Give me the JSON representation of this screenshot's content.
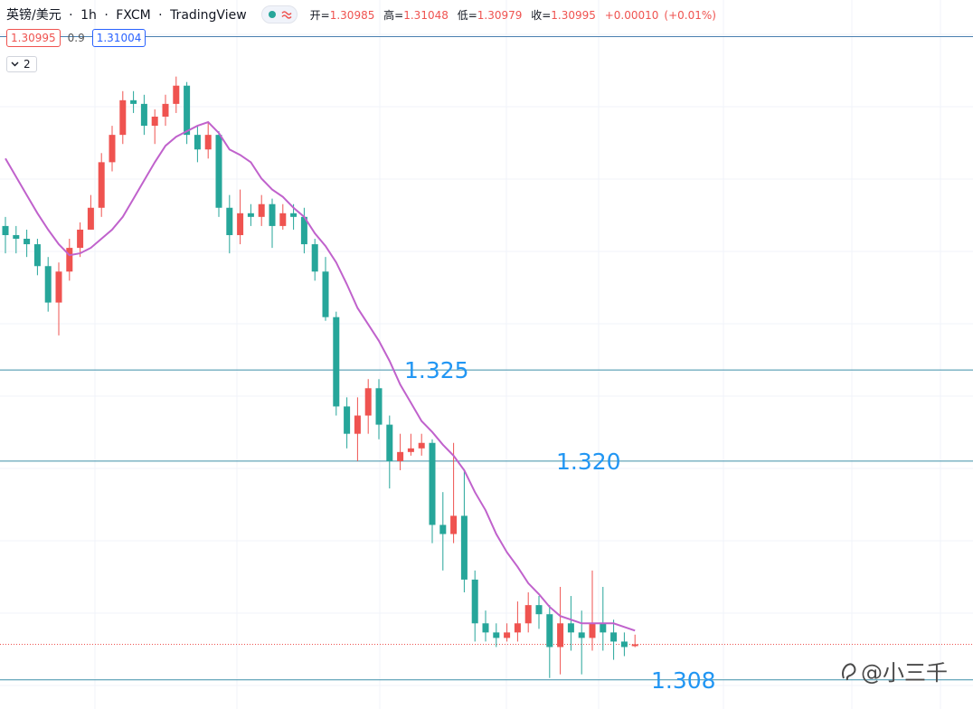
{
  "header": {
    "symbol": "英镑/美元",
    "separator": "·",
    "interval": "1h",
    "broker": "FXCM",
    "platform": "TradingView",
    "open_label": "开=",
    "high_label": "高=",
    "low_label": "低=",
    "close_label": "收=",
    "change": "+0.00010",
    "change_pct": "(+0.01%)",
    "spread": 0.9,
    "ask": 1.31004,
    "indicator_count": 2
  },
  "watermark": "@小三千",
  "chart_data": {
    "type": "candlestick",
    "open": [
      1.3329,
      1.3324,
      1.3322,
      1.3319,
      1.3307,
      1.3287,
      1.3304,
      1.3317,
      1.3327,
      1.3339,
      1.3364,
      1.3379,
      1.3398,
      1.3396,
      1.3384,
      1.3389,
      1.3396,
      1.3406,
      1.3379,
      1.3371,
      1.3379,
      1.3339,
      1.3324,
      1.3336,
      1.3334,
      1.3341,
      1.3329,
      1.3336,
      1.3334,
      1.3319,
      1.3304,
      1.3279,
      1.323,
      1.3215,
      1.3225,
      1.324,
      1.322,
      1.32,
      1.3205,
      1.3207,
      1.321,
      1.3165,
      1.316,
      1.317,
      1.3135,
      1.3111,
      1.3106,
      1.3103,
      1.3106,
      1.3111,
      1.3121,
      1.3116,
      1.3098,
      1.3111,
      1.3106,
      1.3103,
      1.3111,
      1.3106,
      1.3101,
      1.30985
    ],
    "high": [
      1.3334,
      1.3329,
      1.3327,
      1.3322,
      1.3312,
      1.3309,
      1.3322,
      1.3331,
      1.3346,
      1.3369,
      1.3384,
      1.3403,
      1.3403,
      1.3401,
      1.3393,
      1.3401,
      1.3411,
      1.3408,
      1.3384,
      1.3386,
      1.3381,
      1.3346,
      1.3349,
      1.3341,
      1.3346,
      1.3344,
      1.3341,
      1.3341,
      1.3339,
      1.3322,
      1.3312,
      1.3282,
      1.3235,
      1.3235,
      1.3245,
      1.3245,
      1.3225,
      1.3215,
      1.3215,
      1.3215,
      1.3212,
      1.3183,
      1.321,
      1.3195,
      1.314,
      1.3118,
      1.3111,
      1.3111,
      1.3123,
      1.3128,
      1.3126,
      1.3121,
      1.3131,
      1.3126,
      1.3118,
      1.314,
      1.3131,
      1.3113,
      1.3106,
      1.31048
    ],
    "low": [
      1.3314,
      1.3314,
      1.3312,
      1.3302,
      1.3282,
      1.3269,
      1.3299,
      1.3312,
      1.3327,
      1.3334,
      1.3359,
      1.3374,
      1.3391,
      1.3379,
      1.3374,
      1.3384,
      1.3391,
      1.3374,
      1.3364,
      1.3366,
      1.3334,
      1.3314,
      1.3319,
      1.3329,
      1.3329,
      1.3317,
      1.3327,
      1.3327,
      1.3314,
      1.3299,
      1.3277,
      1.3225,
      1.3207,
      1.32,
      1.3215,
      1.3212,
      1.3185,
      1.3195,
      1.3203,
      1.3203,
      1.3155,
      1.314,
      1.3155,
      1.3128,
      1.3101,
      1.3101,
      1.3098,
      1.3101,
      1.3101,
      1.3106,
      1.3108,
      1.3081,
      1.3083,
      1.3096,
      1.3083,
      1.3096,
      1.3096,
      1.3091,
      1.3093,
      1.30979
    ],
    "close": [
      1.3324,
      1.3322,
      1.3319,
      1.3307,
      1.3287,
      1.3304,
      1.3317,
      1.3327,
      1.3339,
      1.3364,
      1.3379,
      1.3398,
      1.3396,
      1.3384,
      1.3389,
      1.3396,
      1.3406,
      1.3379,
      1.3371,
      1.3379,
      1.3339,
      1.3324,
      1.3336,
      1.3334,
      1.3341,
      1.3329,
      1.3336,
      1.3334,
      1.3319,
      1.3304,
      1.3279,
      1.323,
      1.3215,
      1.3225,
      1.324,
      1.322,
      1.32,
      1.3205,
      1.3207,
      1.321,
      1.3165,
      1.316,
      1.317,
      1.3135,
      1.3111,
      1.3106,
      1.3103,
      1.3106,
      1.3111,
      1.3121,
      1.3116,
      1.3098,
      1.3111,
      1.3106,
      1.3103,
      1.3111,
      1.3106,
      1.3101,
      1.3098,
      1.30995
    ],
    "up_color": "#ef5350",
    "down_color": "#26a69a",
    "ma": {
      "color": "#c062cc",
      "values": [
        1.3366,
        1.3356,
        1.3346,
        1.3336,
        1.3327,
        1.3319,
        1.3313,
        1.3314,
        1.3317,
        1.3322,
        1.3327,
        1.3334,
        1.3344,
        1.3354,
        1.3364,
        1.3373,
        1.3378,
        1.3381,
        1.3384,
        1.3386,
        1.338,
        1.3371,
        1.3368,
        1.3364,
        1.3355,
        1.3349,
        1.3345,
        1.3339,
        1.3334,
        1.3325,
        1.3318,
        1.3309,
        1.3297,
        1.3284,
        1.3275,
        1.3266,
        1.3255,
        1.3242,
        1.3232,
        1.3222,
        1.3216,
        1.3209,
        1.3203,
        1.3195,
        1.3183,
        1.3173,
        1.316,
        1.315,
        1.3142,
        1.3133,
        1.3127,
        1.312,
        1.3115,
        1.3113,
        1.3111,
        1.3111,
        1.3111,
        1.3111,
        1.3109,
        1.3107
      ]
    },
    "levels": [
      {
        "value": 1.325,
        "label": "1.325"
      },
      {
        "value": 1.32,
        "label": "1.320"
      },
      {
        "value": 1.308,
        "label": "1.308"
      }
    ],
    "level_color": "#3d8fa8",
    "last_price_color": "#ef5350",
    "ylim": [
      1.3064,
      1.3453
    ]
  }
}
